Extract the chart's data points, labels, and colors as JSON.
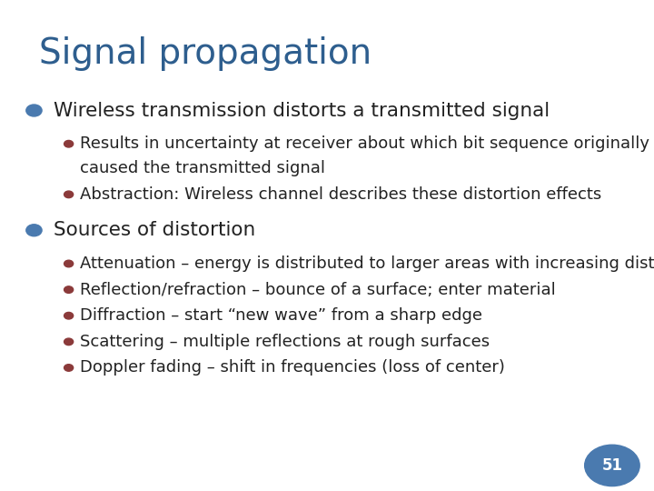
{
  "title": "Signal propagation",
  "title_color": "#2E5E8E",
  "title_fontsize": 28,
  "background_color": "#F0F0F0",
  "slide_bg": "#FFFFFF",
  "border_color": "#CCCCCC",
  "level1_bullet_color": "#4A7AAF",
  "level2_bullet_color": "#8B3A3A",
  "level1_items": [
    {
      "text": "Wireless transmission distorts a transmitted signal",
      "sub_items": [
        "Results in uncertainty at receiver about which bit sequence originally\ncaused the transmitted signal",
        "Abstraction: Wireless channel describes these distortion effects"
      ]
    },
    {
      "text": "Sources of distortion",
      "sub_items": [
        "Attenuation – energy is distributed to larger areas with increasing distance",
        "Reflection/refraction – bounce of a surface; enter material",
        "Diffraction – start “new wave” from a sharp edge",
        "Scattering – multiple reflections at rough surfaces",
        "Doppler fading – shift in frequencies (loss of center)"
      ]
    }
  ],
  "page_number": "51",
  "page_num_bg": "#4A7AAF",
  "page_num_color": "#FFFFFF",
  "text_color": "#222222",
  "level1_fontsize": 15.5,
  "level2_fontsize": 13.0
}
